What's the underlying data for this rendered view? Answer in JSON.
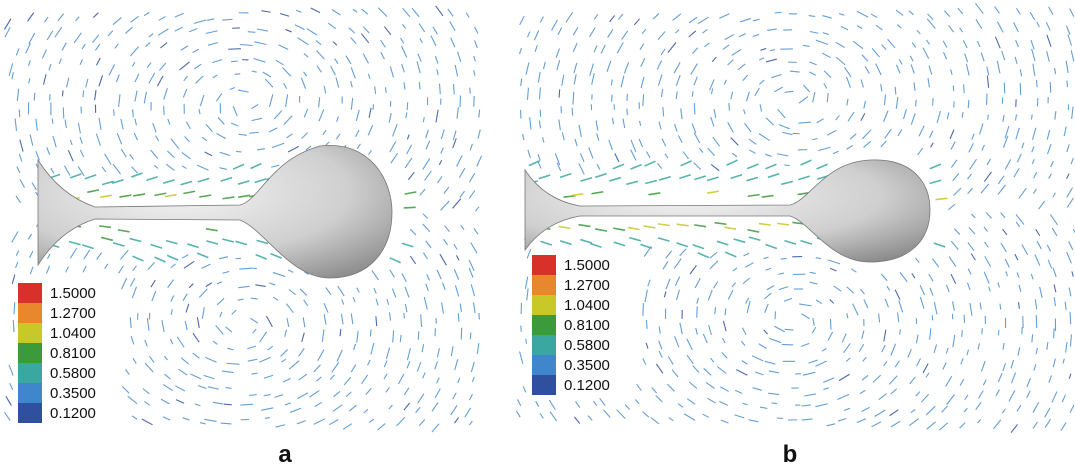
{
  "panels": [
    {
      "label": "a",
      "legend": {
        "labels": [
          "1.5000",
          "1.2700",
          "1.0400",
          "0.8100",
          "0.5800",
          "0.3500",
          "0.1200"
        ],
        "colors": [
          "#d7312a",
          "#e8872c",
          "#c8c828",
          "#3b9a3a",
          "#3aa8a0",
          "#3f86cc",
          "#2f4f9f"
        ]
      }
    },
    {
      "label": "b",
      "legend": {
        "labels": [
          "1.5000",
          "1.2700",
          "1.0400",
          "0.8100",
          "0.5800",
          "0.3500",
          "0.1200"
        ],
        "colors": [
          "#d7312a",
          "#e8872c",
          "#c8c828",
          "#3b9a3a",
          "#3aa8a0",
          "#3f86cc",
          "#2f4f9f"
        ]
      }
    }
  ]
}
